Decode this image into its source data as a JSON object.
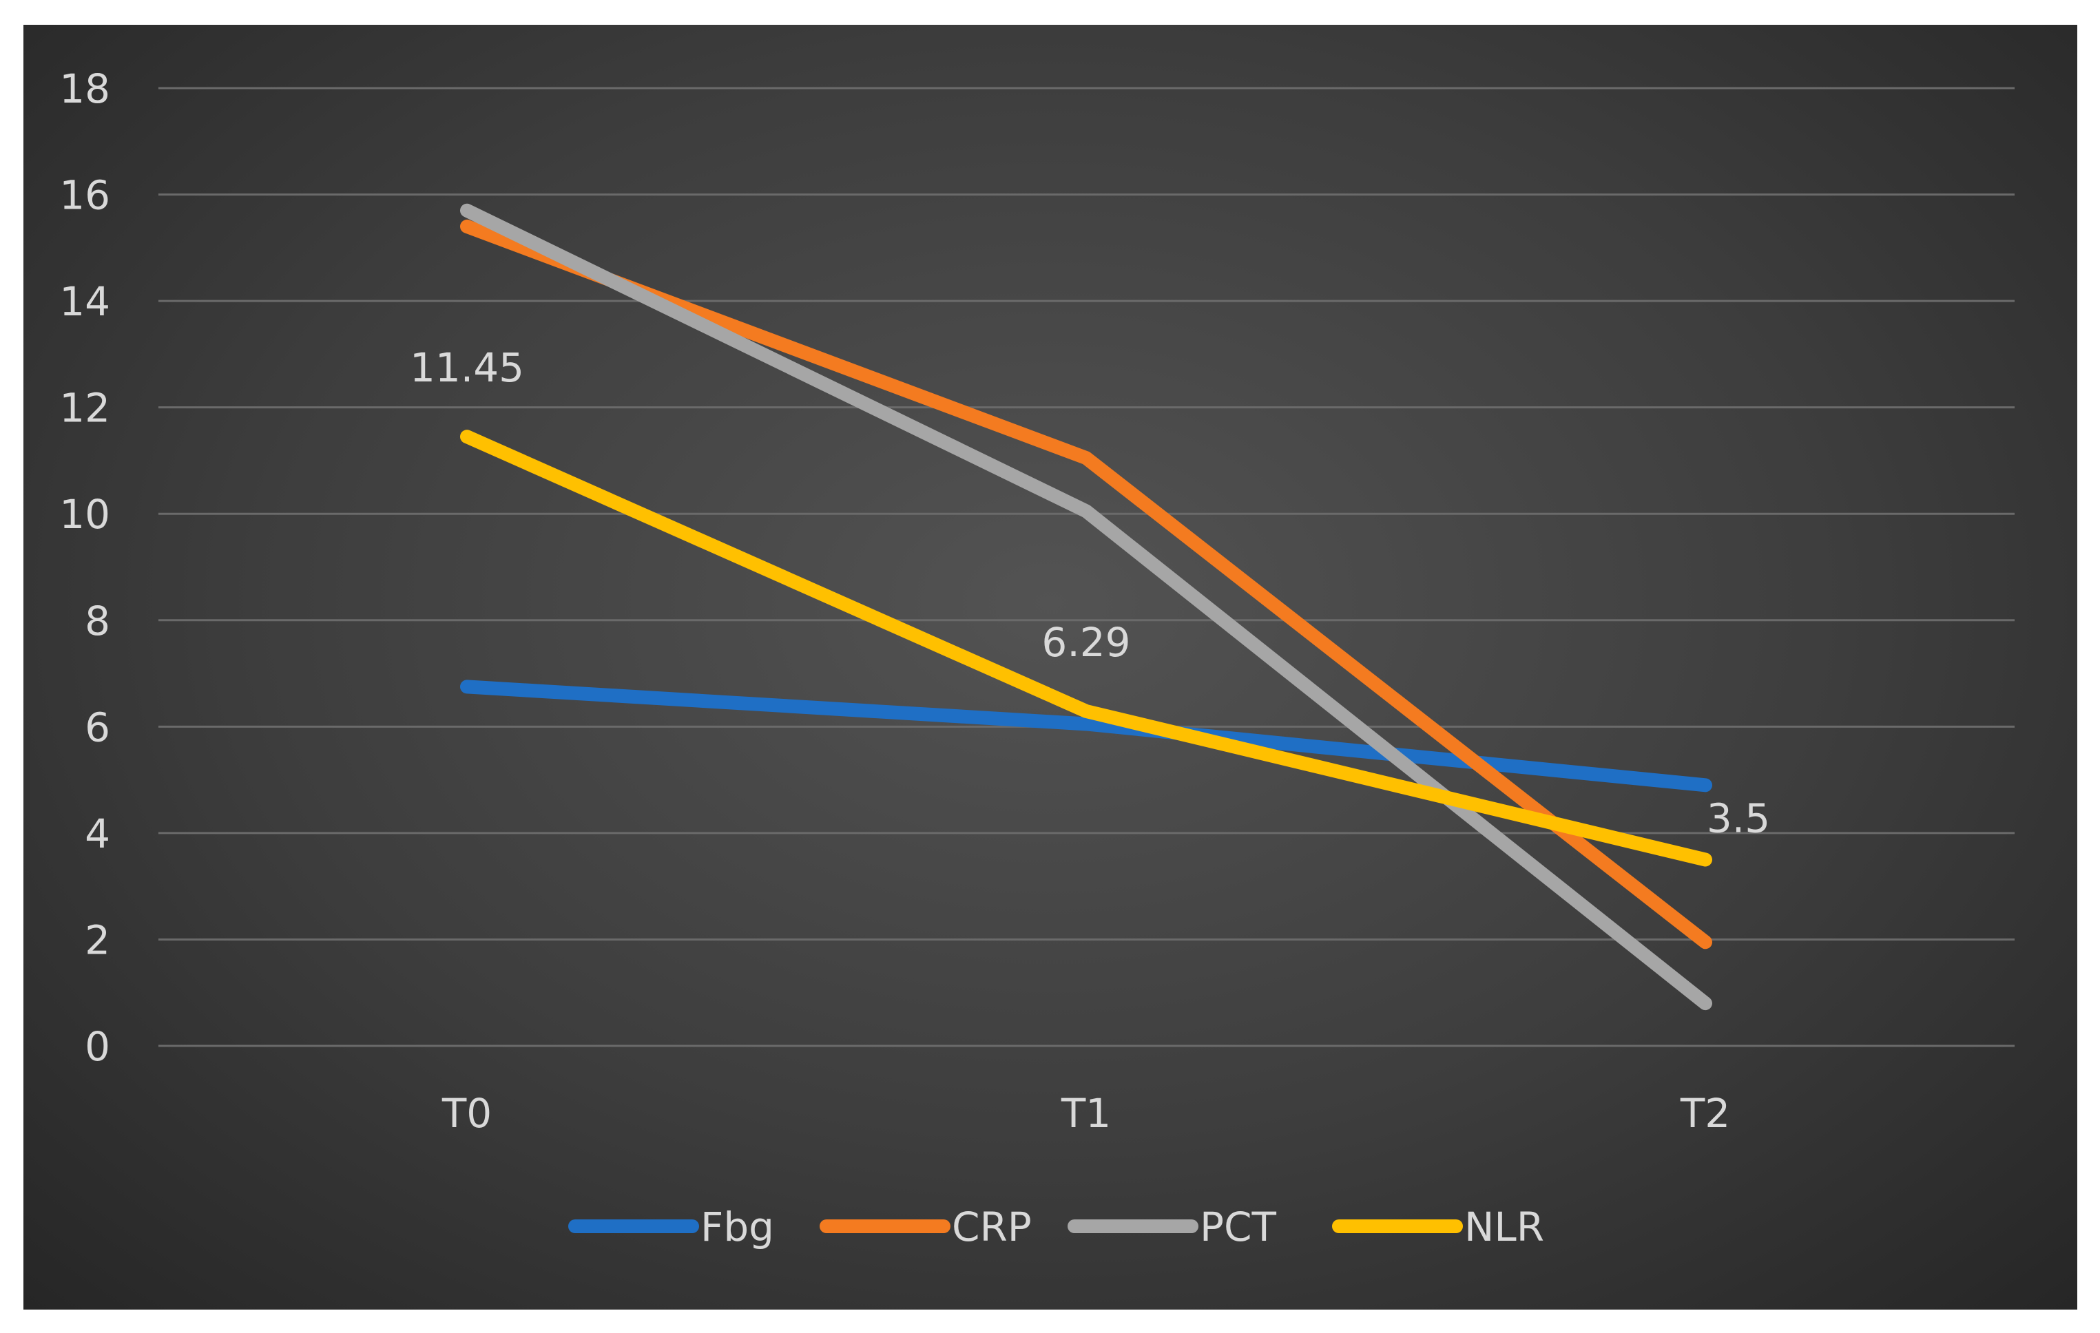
{
  "chart_data": {
    "type": "line",
    "title": "",
    "xlabel": "",
    "ylabel": "",
    "categories": [
      "T0",
      "T1",
      "T2"
    ],
    "ylim": [
      0,
      18
    ],
    "yticks": [
      0,
      2,
      4,
      6,
      8,
      10,
      12,
      14,
      16,
      18
    ],
    "grid": true,
    "legend_position": "bottom",
    "series": [
      {
        "name": "Fbg",
        "color": "#1f6fc5",
        "values": [
          6.75,
          6.05,
          4.9
        ]
      },
      {
        "name": "CRP",
        "color": "#f47b20",
        "values": [
          15.4,
          11.05,
          1.95
        ]
      },
      {
        "name": "PCT",
        "color": "#a6a6a6",
        "values": [
          15.7,
          10.05,
          0.8
        ]
      },
      {
        "name": "NLR",
        "color": "#ffc000",
        "values": [
          11.45,
          6.29,
          3.5
        ]
      }
    ],
    "data_labels": [
      {
        "series": "NLR",
        "category": "T0",
        "text": "11.45"
      },
      {
        "series": "NLR",
        "category": "T1",
        "text": "6.29"
      },
      {
        "series": "NLR",
        "category": "T2",
        "text": "3.5"
      }
    ]
  }
}
